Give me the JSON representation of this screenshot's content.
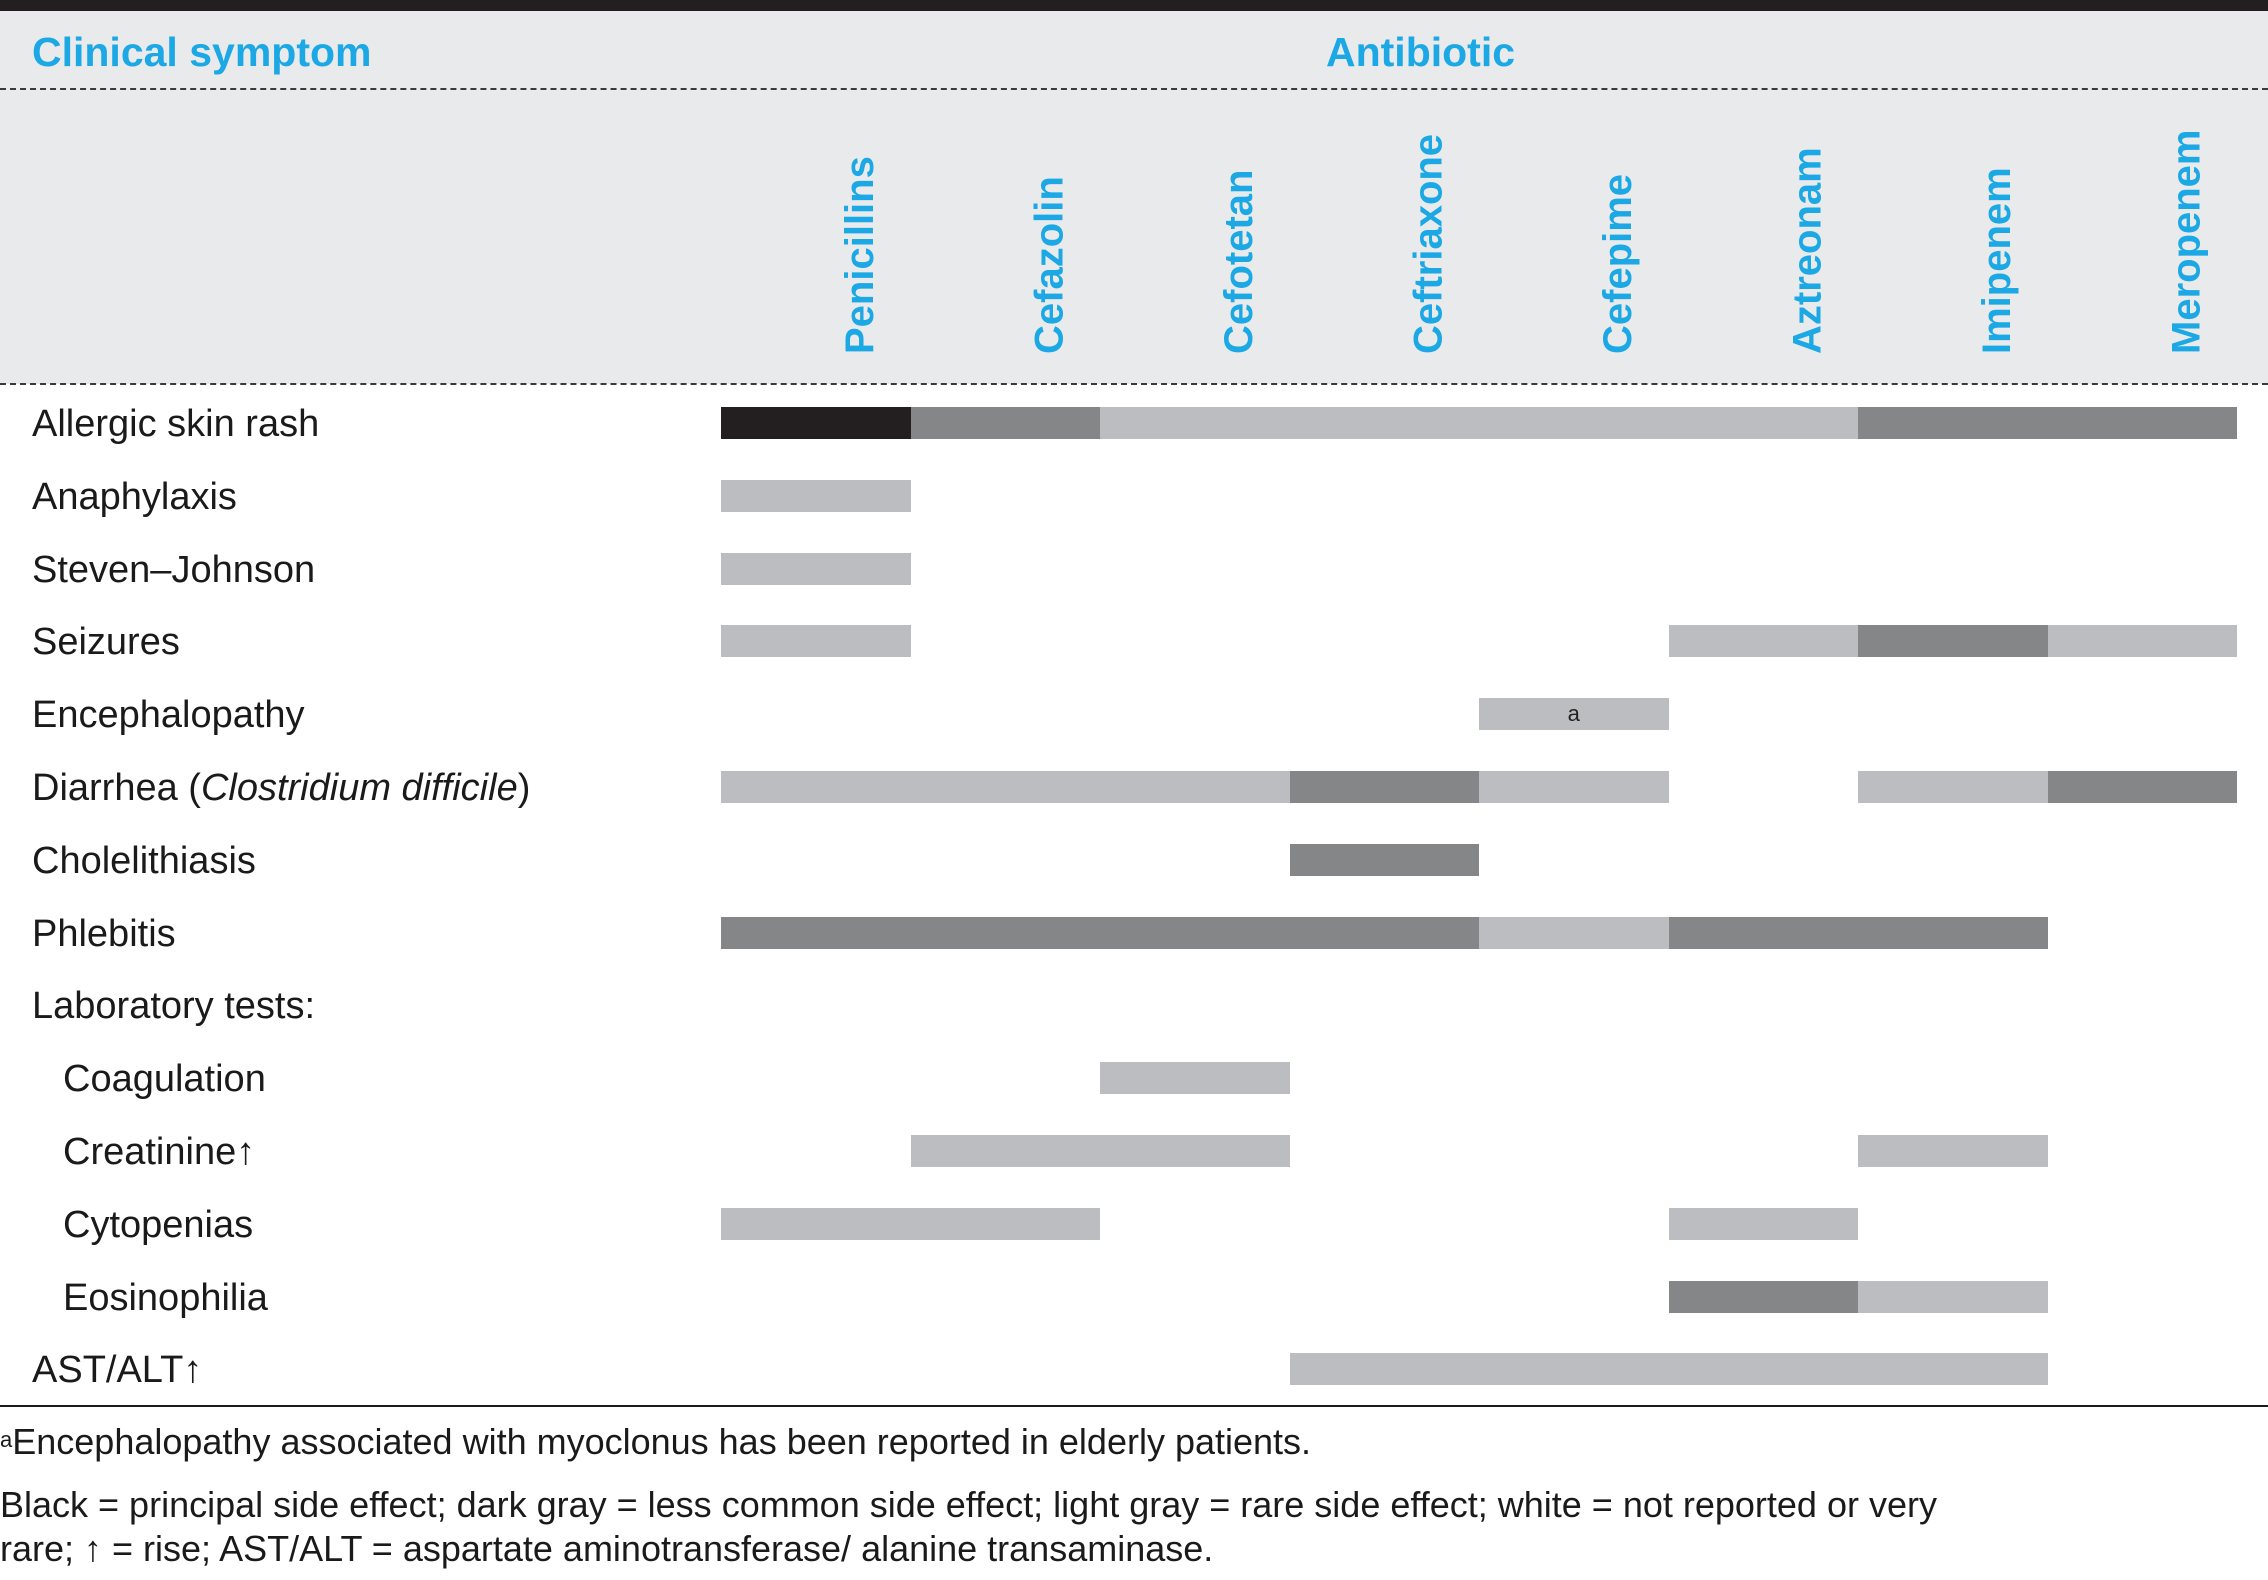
{
  "header": {
    "symptom_label": "Clinical symptom",
    "antibiotic_label": "Antibiotic"
  },
  "antibiotics": [
    "Penicillins",
    "Cefazolin",
    "Cefotetan",
    "Ceftriaxone",
    "Cefepime",
    "Aztreonam",
    "Imipenem",
    "Meropenem"
  ],
  "legend_levels": {
    "principal": {
      "label": "Black",
      "color": "#231f20"
    },
    "less_common": {
      "label": "dark gray",
      "color": "#848688"
    },
    "rare": {
      "label": "light gray",
      "color": "#bcbdc0"
    },
    "none": {
      "label": "white",
      "color": "#ffffff"
    }
  },
  "rows": [
    {
      "label": "Allergic skin rash",
      "indent": 0,
      "cells": [
        "principal",
        "less_common",
        "rare",
        "rare",
        "rare",
        "rare",
        "less_common",
        "less_common"
      ]
    },
    {
      "label": "Anaphylaxis",
      "indent": 0,
      "cells": [
        "rare",
        "",
        "",
        "",
        "",
        "",
        "",
        ""
      ]
    },
    {
      "label": "Steven–Johnson",
      "indent": 0,
      "cells": [
        "rare",
        "",
        "",
        "",
        "",
        "",
        "",
        ""
      ]
    },
    {
      "label": "Seizures",
      "indent": 0,
      "cells": [
        "rare",
        "",
        "",
        "",
        "",
        "rare",
        "less_common",
        "rare"
      ]
    },
    {
      "label": "Encephalopathy",
      "indent": 0,
      "cells": [
        "",
        "",
        "",
        "",
        "rare",
        "",
        "",
        ""
      ],
      "cell_marks": [
        "",
        "",
        "",
        "",
        "a",
        "",
        "",
        ""
      ]
    },
    {
      "label": "Diarrhea (",
      "label_italic": "Clostridium difficile",
      "label_suffix": ")",
      "indent": 0,
      "cells": [
        "rare",
        "rare",
        "rare",
        "less_common",
        "rare",
        "",
        "rare",
        "less_common"
      ]
    },
    {
      "label": "Cholelithiasis",
      "indent": 0,
      "cells": [
        "",
        "",
        "",
        "less_common",
        "",
        "",
        "",
        ""
      ]
    },
    {
      "label": "Phlebitis",
      "indent": 0,
      "cells": [
        "less_common",
        "less_common",
        "less_common",
        "less_common",
        "rare",
        "less_common",
        "less_common",
        ""
      ]
    },
    {
      "label": "Laboratory tests:",
      "indent": 0,
      "cells": [
        "",
        "",
        "",
        "",
        "",
        "",
        "",
        ""
      ]
    },
    {
      "label": "Coagulation",
      "indent": 1,
      "cells": [
        "",
        "",
        "rare",
        "",
        "",
        "",
        "",
        ""
      ]
    },
    {
      "label": "Creatinine↑",
      "indent": 1,
      "cells": [
        "",
        "rare",
        "rare",
        "",
        "",
        "",
        "rare",
        ""
      ]
    },
    {
      "label": "Cytopenias",
      "indent": 1,
      "cells": [
        "rare",
        "rare",
        "",
        "",
        "",
        "rare",
        "",
        ""
      ]
    },
    {
      "label": "Eosinophilia",
      "indent": 1,
      "cells": [
        "",
        "",
        "",
        "",
        "",
        "less_common",
        "rare",
        ""
      ]
    },
    {
      "label": "AST/ALT↑",
      "indent": 0,
      "cells": [
        "",
        "",
        "",
        "rare",
        "rare",
        "rare",
        "rare",
        ""
      ]
    }
  ],
  "footnotes": {
    "a_mark": "a",
    "a_text": "Encephalopathy associated with myoclonus has been reported in elderly patients.",
    "legend_line1": "Black = principal side effect; dark gray = less common side effect; light gray = rare side effect; white = not reported or very",
    "legend_line2": "rare; ↑ = rise; AST/ALT = aspartate aminotransferase/ alanine transaminase."
  }
}
